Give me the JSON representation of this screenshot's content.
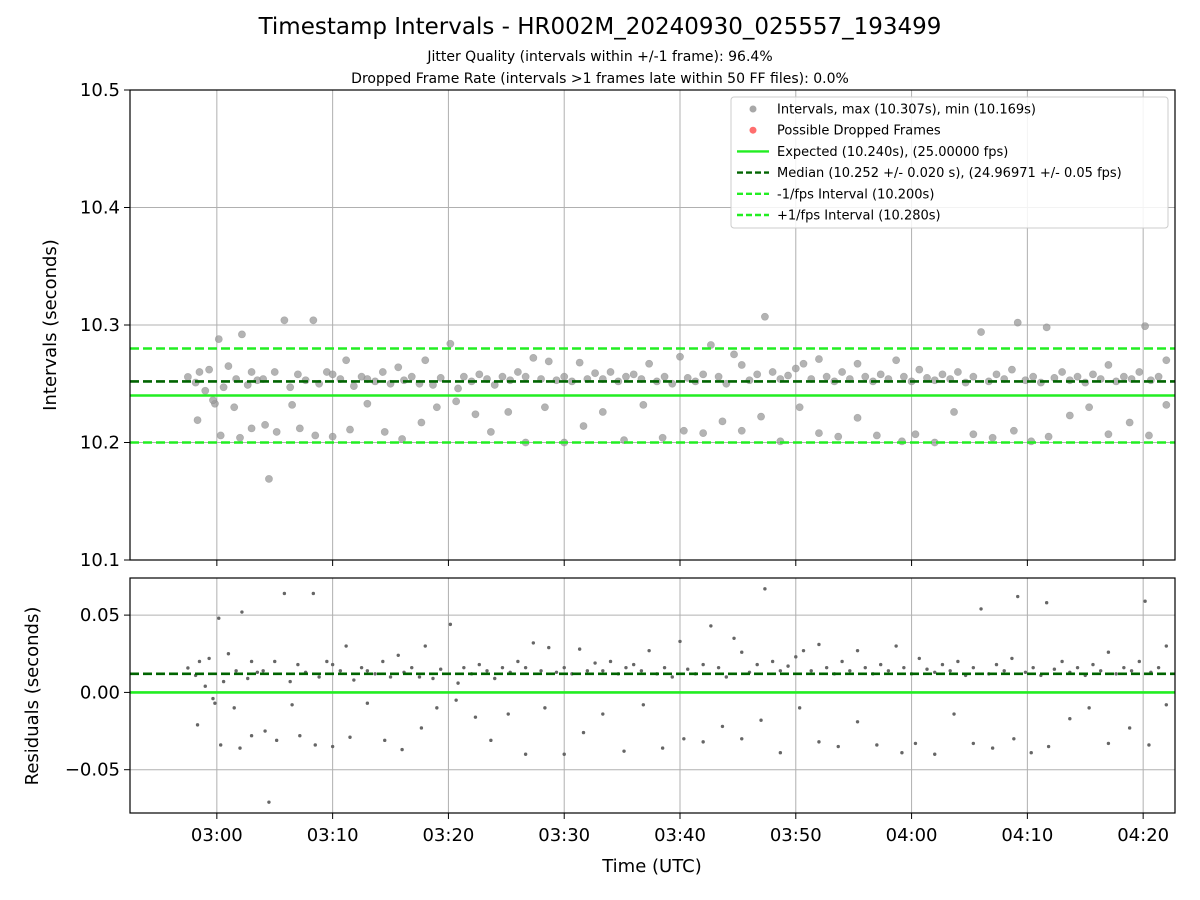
{
  "header": {
    "title": "Timestamp Intervals - HR002M_20240930_025557_193499",
    "subtitle_jitter": "Jitter Quality (intervals within +/-1 frame): 96.4%",
    "subtitle_dropped": "Dropped Frame Rate (intervals >1 frames late within 50 FF files): 0.0%"
  },
  "chart_data": [
    {
      "type": "scatter",
      "panel": "intervals",
      "title": "Timestamp Intervals - HR002M_20240930_025557_193499",
      "ylabel": "Intervals (seconds)",
      "ylim": [
        10.1,
        10.5
      ],
      "yticks": [
        "10.1",
        "10.2",
        "10.3",
        "10.4",
        "10.5"
      ],
      "xlim": [
        "02:52:30",
        "04:22:45"
      ],
      "xticks": [
        "03:00",
        "03:10",
        "03:20",
        "03:30",
        "03:40",
        "03:50",
        "04:00",
        "04:10",
        "04:20"
      ],
      "grid": true,
      "legend_position": "top-right",
      "legend": [
        "Intervals, max (10.307s), min (10.169s)",
        "Possible Dropped Frames",
        "Expected (10.240s), (25.00000 fps)",
        "Median (10.252 +/- 0.020 s), (24.96971 +/- 0.05 fps)",
        "-1/fps Interval (10.200s)",
        "+1/fps Interval (10.280s)"
      ],
      "reference_lines": [
        {
          "name": "Expected (10.240s), (25.00000 fps)",
          "y": 10.24,
          "style": "solid",
          "color": "#22ee22"
        },
        {
          "name": "Median (10.252 +/- 0.020 s), (24.96971 +/- 0.05 fps)",
          "y": 10.252,
          "style": "dashed",
          "color": "#006400"
        },
        {
          "name": "-1/fps Interval (10.200s)",
          "y": 10.2,
          "style": "dashed",
          "color": "#22ee22"
        },
        {
          "name": "+1/fps Interval (10.280s)",
          "y": 10.28,
          "style": "dashed",
          "color": "#22ee22"
        }
      ],
      "series": [
        {
          "name": "Intervals, max (10.307s), min (10.169s)",
          "color": "#999999",
          "points": [
            [
              "02:57:30",
              10.2558
            ],
            [
              "02:58:10",
              10.251
            ],
            [
              "02:58:30",
              10.26
            ],
            [
              "02:59:00",
              10.244
            ],
            [
              "02:59:20",
              10.262
            ],
            [
              "02:59:50",
              10.233
            ],
            [
              "03:00:10",
              10.288
            ],
            [
              "03:00:35",
              10.247
            ],
            [
              "03:01:00",
              10.265
            ],
            [
              "03:01:40",
              10.254
            ],
            [
              "03:02:10",
              10.292
            ],
            [
              "03:02:40",
              10.249
            ],
            [
              "03:03:00",
              10.26
            ],
            [
              "03:03:30",
              10.253
            ],
            [
              "03:04:00",
              10.254
            ],
            [
              "03:04:30",
              10.169
            ],
            [
              "03:05:00",
              10.26
            ],
            [
              "03:05:50",
              10.304
            ],
            [
              "03:06:20",
              10.247
            ],
            [
              "03:07:00",
              10.258
            ],
            [
              "03:07:40",
              10.253
            ],
            [
              "03:08:20",
              10.304
            ],
            [
              "03:08:50",
              10.25
            ],
            [
              "03:09:30",
              10.26
            ],
            [
              "03:10:00",
              10.258
            ],
            [
              "03:10:40",
              10.254
            ],
            [
              "03:11:10",
              10.27
            ],
            [
              "03:11:50",
              10.248
            ],
            [
              "03:12:30",
              10.256
            ],
            [
              "03:13:00",
              10.254
            ],
            [
              "03:13:40",
              10.252
            ],
            [
              "03:14:20",
              10.26
            ],
            [
              "03:15:00",
              10.25
            ],
            [
              "03:15:40",
              10.264
            ],
            [
              "03:16:10",
              10.253
            ],
            [
              "03:16:50",
              10.256
            ],
            [
              "03:17:30",
              10.25
            ],
            [
              "03:18:00",
              10.27
            ],
            [
              "03:18:40",
              10.249
            ],
            [
              "03:19:20",
              10.255
            ],
            [
              "03:20:10",
              10.284
            ],
            [
              "03:20:50",
              10.246
            ],
            [
              "03:21:20",
              10.256
            ],
            [
              "03:22:00",
              10.252
            ],
            [
              "03:22:40",
              10.258
            ],
            [
              "03:23:20",
              10.254
            ],
            [
              "03:24:00",
              10.249
            ],
            [
              "03:24:40",
              10.256
            ],
            [
              "03:25:20",
              10.253
            ],
            [
              "03:26:00",
              10.26
            ],
            [
              "03:26:40",
              10.256
            ],
            [
              "03:27:20",
              10.272
            ],
            [
              "03:28:00",
              10.254
            ],
            [
              "03:28:40",
              10.269
            ],
            [
              "03:29:20",
              10.253
            ],
            [
              "03:30:00",
              10.256
            ],
            [
              "03:30:40",
              10.252
            ],
            [
              "03:31:20",
              10.268
            ],
            [
              "03:32:00",
              10.254
            ],
            [
              "03:32:40",
              10.259
            ],
            [
              "03:33:20",
              10.254
            ],
            [
              "03:34:00",
              10.26
            ],
            [
              "03:34:40",
              10.252
            ],
            [
              "03:35:20",
              10.256
            ],
            [
              "03:36:00",
              10.258
            ],
            [
              "03:36:40",
              10.254
            ],
            [
              "03:37:20",
              10.267
            ],
            [
              "03:38:00",
              10.252
            ],
            [
              "03:38:40",
              10.256
            ],
            [
              "03:39:20",
              10.25
            ],
            [
              "03:40:00",
              10.273
            ],
            [
              "03:40:40",
              10.255
            ],
            [
              "03:41:20",
              10.252
            ],
            [
              "03:42:00",
              10.258
            ],
            [
              "03:42:40",
              10.283
            ],
            [
              "03:43:20",
              10.256
            ],
            [
              "03:44:00",
              10.25
            ],
            [
              "03:44:40",
              10.275
            ],
            [
              "03:45:20",
              10.266
            ],
            [
              "03:46:00",
              10.253
            ],
            [
              "03:46:40",
              10.258
            ],
            [
              "03:47:20",
              10.307
            ],
            [
              "03:48:00",
              10.26
            ],
            [
              "03:48:40",
              10.254
            ],
            [
              "03:49:20",
              10.257
            ],
            [
              "03:50:00",
              10.263
            ],
            [
              "03:50:40",
              10.267
            ],
            [
              "03:51:20",
              10.254
            ],
            [
              "03:52:00",
              10.271
            ],
            [
              "03:52:40",
              10.256
            ],
            [
              "03:53:20",
              10.252
            ],
            [
              "03:54:00",
              10.26
            ],
            [
              "03:54:40",
              10.254
            ],
            [
              "03:55:20",
              10.267
            ],
            [
              "03:56:00",
              10.256
            ],
            [
              "03:56:40",
              10.252
            ],
            [
              "03:57:20",
              10.258
            ],
            [
              "03:58:00",
              10.254
            ],
            [
              "03:58:40",
              10.27
            ],
            [
              "03:59:20",
              10.256
            ],
            [
              "04:00:00",
              10.252
            ],
            [
              "04:00:40",
              10.262
            ],
            [
              "04:01:20",
              10.255
            ],
            [
              "04:02:00",
              10.253
            ],
            [
              "04:02:40",
              10.258
            ],
            [
              "04:03:20",
              10.254
            ],
            [
              "04:04:00",
              10.26
            ],
            [
              "04:04:40",
              10.251
            ],
            [
              "04:05:20",
              10.256
            ],
            [
              "04:06:00",
              10.294
            ],
            [
              "04:06:40",
              10.252
            ],
            [
              "04:07:20",
              10.258
            ],
            [
              "04:08:00",
              10.254
            ],
            [
              "04:08:40",
              10.262
            ],
            [
              "04:09:10",
              10.302
            ],
            [
              "04:09:50",
              10.253
            ],
            [
              "04:10:30",
              10.256
            ],
            [
              "04:11:10",
              10.251
            ],
            [
              "04:11:40",
              10.298
            ],
            [
              "04:12:20",
              10.255
            ],
            [
              "04:13:00",
              10.26
            ],
            [
              "04:13:40",
              10.253
            ],
            [
              "04:14:20",
              10.256
            ],
            [
              "04:15:00",
              10.251
            ],
            [
              "04:15:40",
              10.258
            ],
            [
              "04:16:20",
              10.254
            ],
            [
              "04:17:00",
              10.266
            ],
            [
              "04:17:40",
              10.252
            ],
            [
              "04:18:20",
              10.256
            ],
            [
              "04:19:00",
              10.254
            ],
            [
              "04:19:40",
              10.26
            ],
            [
              "04:20:10",
              10.299
            ],
            [
              "04:20:40",
              10.253
            ],
            [
              "04:21:20",
              10.256
            ],
            [
              "04:22:00",
              10.27
            ],
            [
              "02:58:20",
              10.219
            ],
            [
              "02:59:40",
              10.236
            ],
            [
              "03:00:20",
              10.206
            ],
            [
              "03:01:30",
              10.23
            ],
            [
              "03:02:00",
              10.204
            ],
            [
              "03:03:00",
              10.212
            ],
            [
              "03:04:10",
              10.215
            ],
            [
              "03:05:10",
              10.209
            ],
            [
              "03:06:30",
              10.232
            ],
            [
              "03:07:10",
              10.212
            ],
            [
              "03:08:30",
              10.206
            ],
            [
              "03:10:00",
              10.205
            ],
            [
              "03:11:30",
              10.211
            ],
            [
              "03:13:00",
              10.233
            ],
            [
              "03:14:30",
              10.209
            ],
            [
              "03:16:00",
              10.203
            ],
            [
              "03:17:40",
              10.217
            ],
            [
              "03:19:00",
              10.23
            ],
            [
              "03:20:40",
              10.235
            ],
            [
              "03:22:20",
              10.224
            ],
            [
              "03:23:40",
              10.209
            ],
            [
              "03:25:10",
              10.226
            ],
            [
              "03:26:40",
              10.2
            ],
            [
              "03:28:20",
              10.23
            ],
            [
              "03:30:00",
              10.2
            ],
            [
              "03:31:40",
              10.214
            ],
            [
              "03:33:20",
              10.226
            ],
            [
              "03:35:10",
              10.202
            ],
            [
              "03:36:50",
              10.232
            ],
            [
              "03:38:30",
              10.204
            ],
            [
              "03:40:20",
              10.21
            ],
            [
              "03:42:00",
              10.208
            ],
            [
              "03:43:40",
              10.218
            ],
            [
              "03:45:20",
              10.21
            ],
            [
              "03:47:00",
              10.222
            ],
            [
              "03:48:40",
              10.201
            ],
            [
              "03:50:20",
              10.23
            ],
            [
              "03:52:00",
              10.208
            ],
            [
              "03:53:40",
              10.205
            ],
            [
              "03:55:20",
              10.221
            ],
            [
              "03:57:00",
              10.206
            ],
            [
              "03:59:10",
              10.201
            ],
            [
              "04:00:20",
              10.207
            ],
            [
              "04:02:00",
              10.2
            ],
            [
              "04:03:40",
              10.226
            ],
            [
              "04:05:20",
              10.207
            ],
            [
              "04:07:00",
              10.204
            ],
            [
              "04:08:50",
              10.21
            ],
            [
              "04:10:20",
              10.201
            ],
            [
              "04:11:50",
              10.205
            ],
            [
              "04:13:40",
              10.223
            ],
            [
              "04:15:20",
              10.23
            ],
            [
              "04:17:00",
              10.207
            ],
            [
              "04:18:50",
              10.217
            ],
            [
              "04:20:30",
              10.206
            ],
            [
              "04:22:00",
              10.232
            ]
          ]
        },
        {
          "name": "Possible Dropped Frames",
          "color": "#ff5555",
          "points": []
        }
      ]
    },
    {
      "type": "scatter",
      "panel": "residuals",
      "xlabel": "Time (UTC)",
      "ylabel": "Residuals (seconds)",
      "ylim": [
        -0.078,
        0.074
      ],
      "yticks": [
        "−0.05",
        "0.00",
        "0.05"
      ],
      "ytick_values": [
        -0.05,
        0.0,
        0.05
      ],
      "xlim": [
        "02:52:30",
        "04:22:45"
      ],
      "xticks": [
        "03:00",
        "03:10",
        "03:20",
        "03:30",
        "03:40",
        "03:50",
        "04:00",
        "04:10",
        "04:20"
      ],
      "grid": true,
      "reference_lines": [
        {
          "y": 0.0,
          "style": "solid",
          "color": "#22ee22"
        },
        {
          "y": 0.012,
          "style": "dashed",
          "color": "#006400"
        }
      ],
      "series": [
        {
          "name": "Residuals",
          "color": "#666666",
          "derived_from": "intervals minus 10.240"
        }
      ]
    }
  ]
}
